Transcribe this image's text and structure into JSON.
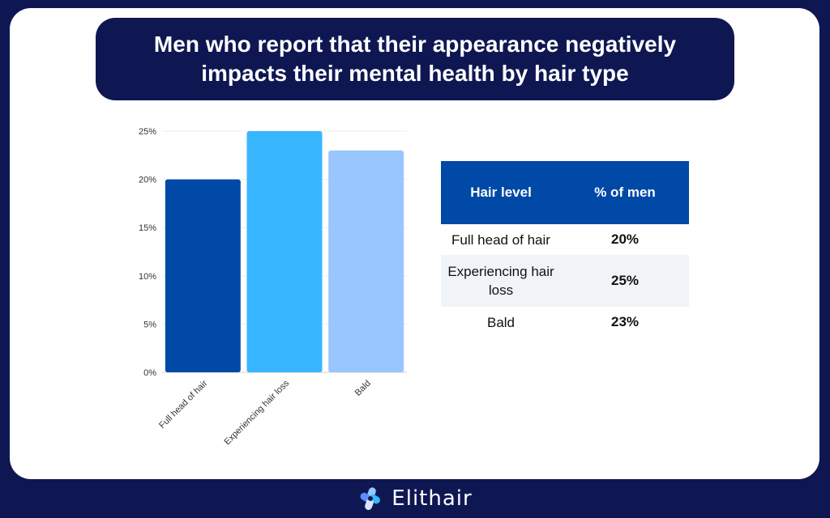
{
  "title": "Men who report that their appearance negatively impacts their mental health by hair type",
  "chart_data": {
    "type": "bar",
    "categories": [
      "Full head of hair",
      "Experiencing hair loss",
      "Bald"
    ],
    "values": [
      20,
      25,
      23
    ],
    "ylim": [
      0,
      25
    ],
    "yticks": [
      0,
      5,
      10,
      15,
      20,
      25
    ],
    "ytick_labels": [
      "0%",
      "5%",
      "10%",
      "15%",
      "20%",
      "25%"
    ],
    "colors": [
      "#0049a6",
      "#38b6ff",
      "#99c6ff"
    ],
    "grid": true
  },
  "table": {
    "headers": [
      "Hair level",
      "% of men"
    ],
    "rows": [
      {
        "label": "Full head of hair",
        "value": "20%"
      },
      {
        "label": "Experiencing hair loss",
        "value": "25%"
      },
      {
        "label": "Bald",
        "value": "23%"
      }
    ]
  },
  "footer": {
    "brand": "Elithair",
    "icon": "elithair-logo-icon"
  },
  "colors": {
    "navy": "#0f1752",
    "header_blue": "#0049a6"
  }
}
